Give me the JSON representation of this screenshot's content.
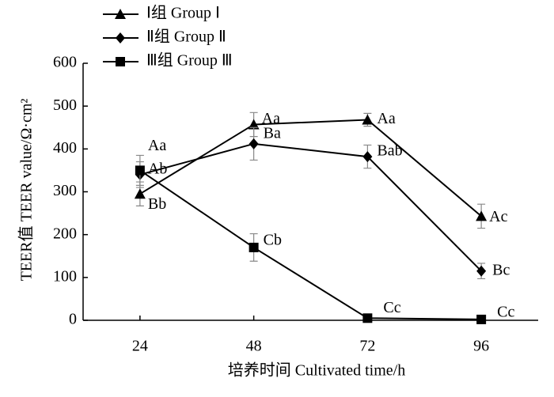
{
  "chart_data": {
    "type": "line",
    "x_label": "培养时间  Cultivated time/h",
    "y_label": "TEER值  TEER value/Ω·cm²",
    "x": [
      24,
      48,
      72,
      96
    ],
    "xlim": [
      12,
      108
    ],
    "xticks": [
      24,
      48,
      72,
      96
    ],
    "ylim": [
      0,
      600
    ],
    "yticks": [
      0,
      100,
      200,
      300,
      400,
      500,
      600
    ],
    "legend": "top-left",
    "series": [
      {
        "name": "Ⅰ组  Group Ⅰ",
        "color": "#000000",
        "marker": "triangle",
        "values": [
          295,
          457,
          468,
          243
        ],
        "errors": [
          28,
          28,
          15,
          28
        ],
        "labels": [
          "Bb",
          "Aa",
          "Aa",
          "Ac"
        ]
      },
      {
        "name": "Ⅱ组 Group Ⅱ",
        "color": "#000000",
        "marker": "diamond",
        "values": [
          340,
          412,
          382,
          115
        ],
        "errors": [
          30,
          38,
          27,
          18
        ],
        "labels": [
          "Ab",
          "Ba",
          "Bab",
          "Bc"
        ]
      },
      {
        "name": "Ⅲ组 Group Ⅲ",
        "color": "#000000",
        "marker": "square",
        "values": [
          350,
          170,
          5,
          2
        ],
        "errors": [
          35,
          32,
          5,
          3
        ],
        "labels": [
          "Aa",
          "Cb",
          "Cc",
          "Cc"
        ]
      }
    ]
  }
}
